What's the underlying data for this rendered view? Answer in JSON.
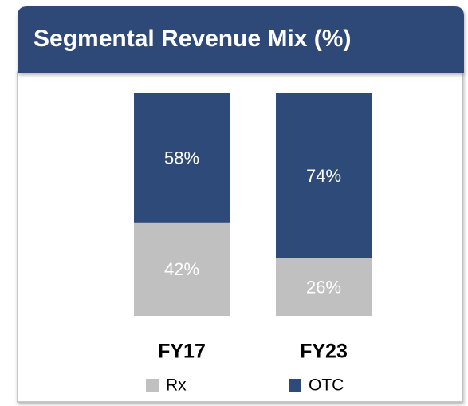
{
  "chart_data": {
    "type": "stacked-bar",
    "title": "Segmental Revenue Mix (%)",
    "categories": [
      "FY17",
      "FY23"
    ],
    "series": [
      {
        "name": "Rx",
        "color": "#c0c0c0",
        "values": [
          42,
          26
        ],
        "value_labels": [
          "42%",
          "26%"
        ]
      },
      {
        "name": "OTC",
        "color": "#2e4a78",
        "values": [
          58,
          74
        ],
        "value_labels": [
          "58%",
          "74%"
        ]
      }
    ],
    "header_color": "#2e4a78"
  }
}
